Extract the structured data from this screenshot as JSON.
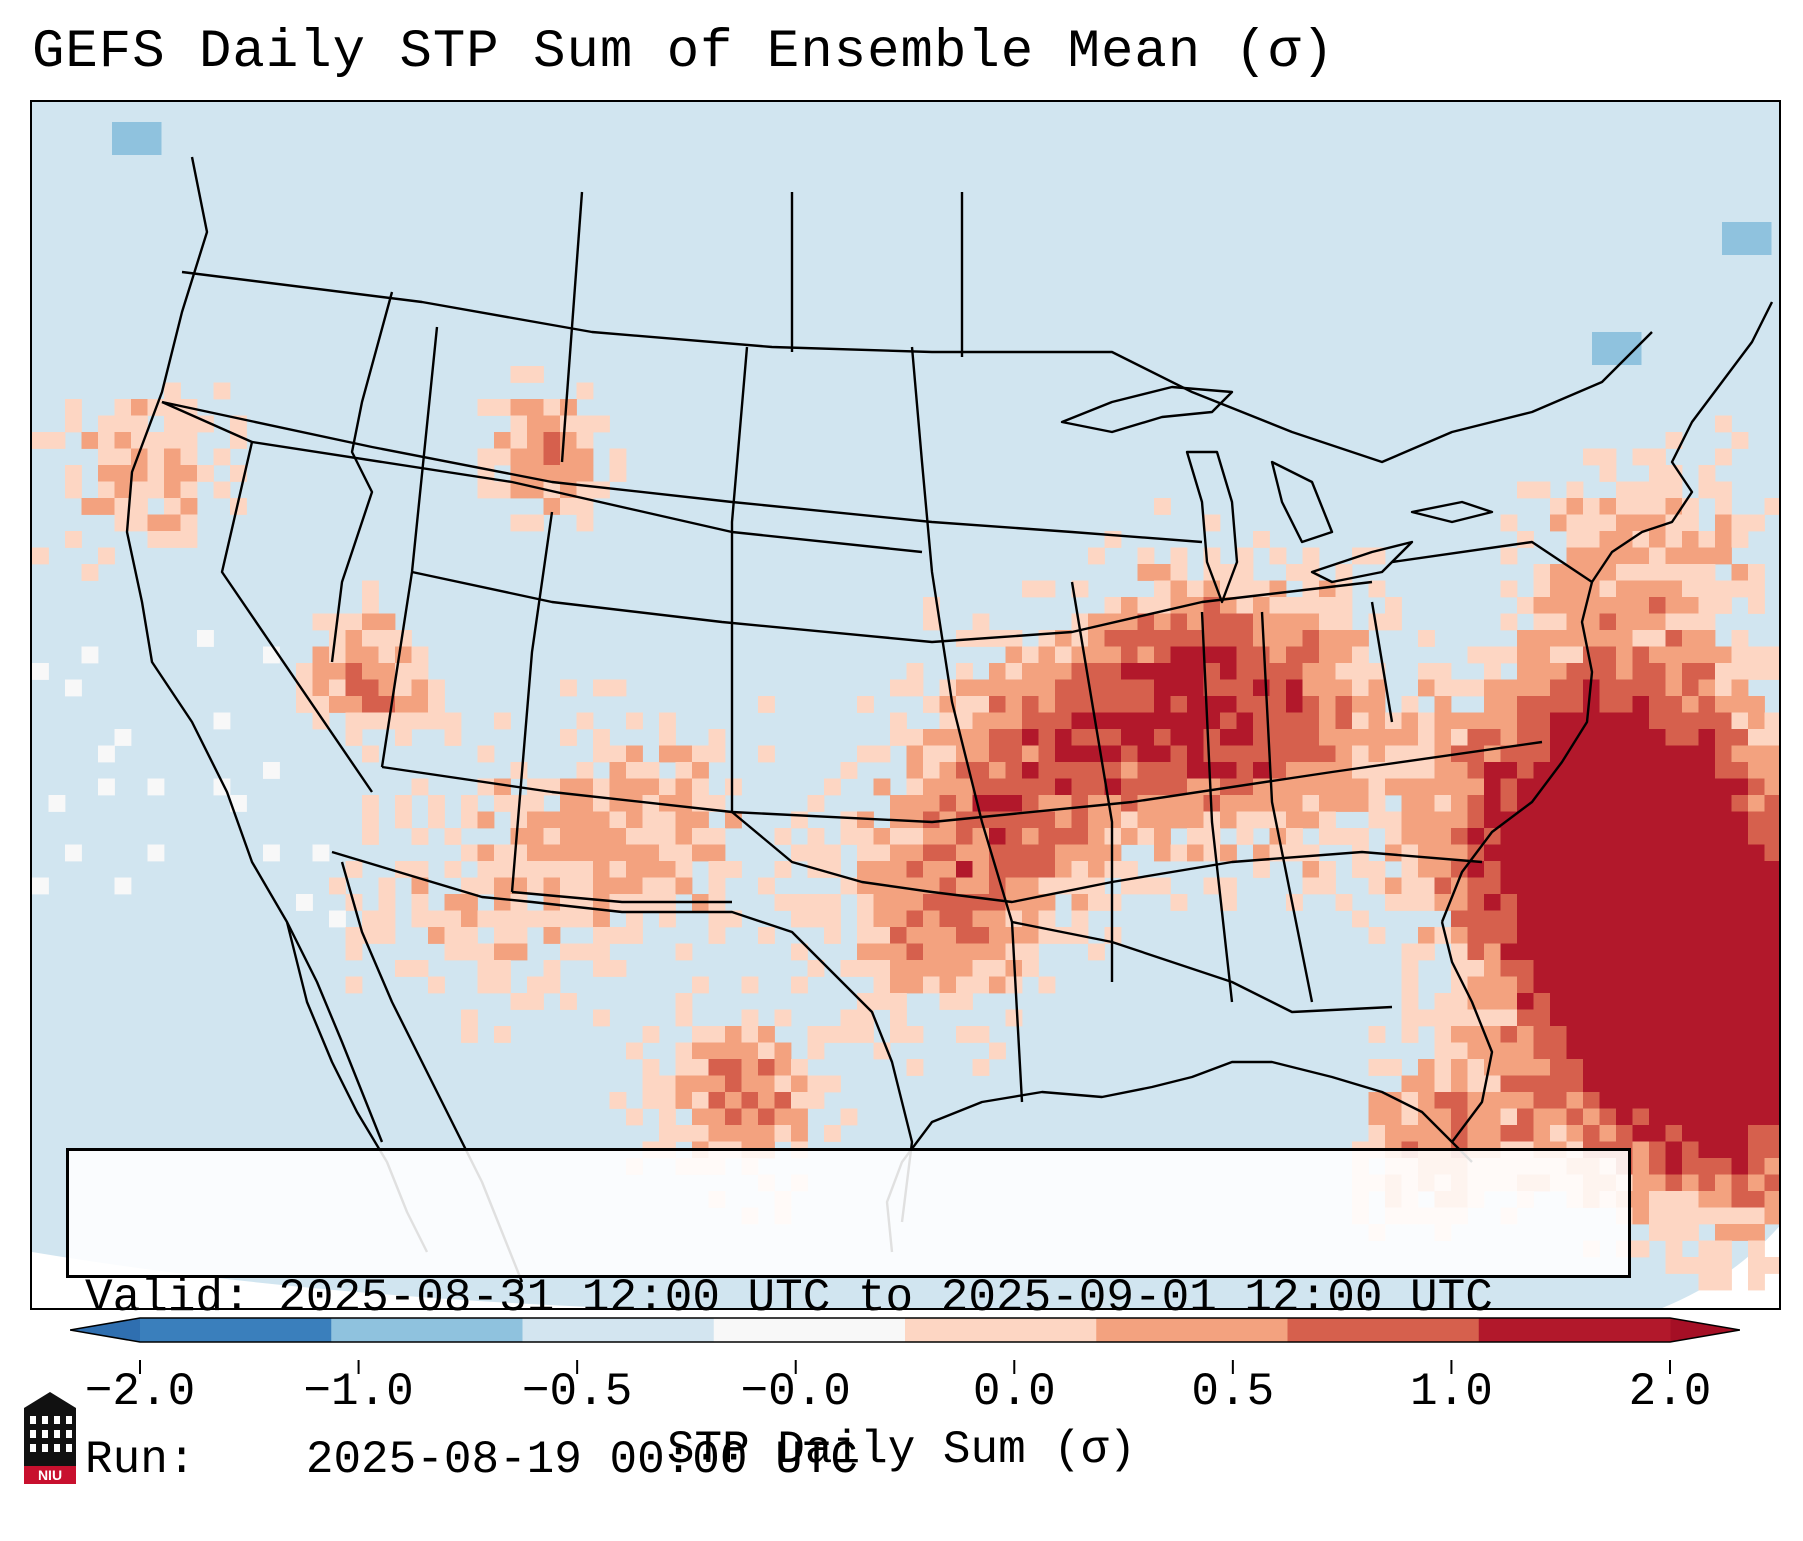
{
  "title": "GEFS Daily STP Sum of Ensemble Mean (σ)",
  "info": {
    "valid_label": "Valid:",
    "valid_value": "2025-08-31 12:00 UTC to 2025-09-01 12:00 UTC",
    "run_label": "Run:",
    "run_value": "2025-08-19 00:00 UTC"
  },
  "colorbar": {
    "label": "STP Daily Sum (σ)",
    "ticks": [
      "−2.0",
      "−1.0",
      "−0.5",
      "−0.0",
      "0.0",
      "0.5",
      "1.0",
      "2.0"
    ],
    "bin_colors": [
      "#3a7fbc",
      "#8fc2de",
      "#d3e5f0",
      "#f8f8f8",
      "#fdd6c3",
      "#f3a27f",
      "#d6604d",
      "#b2182b"
    ],
    "underflow_color": "#2f6fb0",
    "overflow_color": "#a50f25"
  },
  "map": {
    "background_color": "#d1e5f0",
    "legend_levels": [
      -2.0,
      -1.0,
      -0.5,
      0.0,
      0.5,
      1.0,
      2.0
    ]
  },
  "logo": {
    "text": "NIU"
  }
}
